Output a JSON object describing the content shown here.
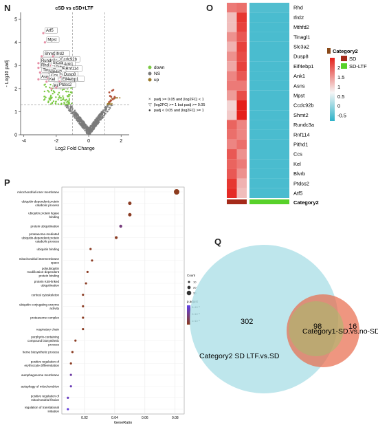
{
  "panels": {
    "n": "N",
    "o": "O",
    "p": "P",
    "q": "Q"
  },
  "chart_data": [
    {
      "panel": "N",
      "type": "scatter",
      "title": "cSD vs cSD+LTF",
      "xlabel": "Log2 Fold Change",
      "ylabel": "- Log10 padj",
      "xlim": [
        -4.2,
        2.5
      ],
      "ylim": [
        0,
        5.3
      ],
      "xticks": [
        "-4",
        "-2",
        "0",
        "2"
      ],
      "yticks": [
        "0",
        "1",
        "2",
        "3",
        "4",
        "5"
      ],
      "threshold_lines": {
        "x": [
          -1,
          1
        ],
        "y": 1.3
      },
      "legend_groups": [
        {
          "name": "down",
          "color": "#7bc943"
        },
        {
          "name": "NS",
          "color": "#7a7a7a"
        },
        {
          "name": "up",
          "color": "#9b7a2a"
        }
      ],
      "legend_notes": [
        "padj >= 0.05 and |log2FC| < 1",
        "|log2FC| >= 1 but padj >= 0.05",
        "padj < 0.05 and |log2FC| >= 1"
      ],
      "labeled_genes": [
        {
          "gene": "Atf5",
          "x": -2.8,
          "y": 4.4
        },
        {
          "gene": "Mpst",
          "x": -2.7,
          "y": 4.0
        },
        {
          "gene": "Shmt2",
          "x": -2.9,
          "y": 3.4
        },
        {
          "gene": "Ifrd2",
          "x": -2.2,
          "y": 3.4
        },
        {
          "gene": "Ccdc92b",
          "x": -1.9,
          "y": 3.15
        },
        {
          "gene": "Rundc3a",
          "x": -3.1,
          "y": 3.1
        },
        {
          "gene": "Slc3a2",
          "x": -2.4,
          "y": 3.0
        },
        {
          "gene": "Ank1",
          "x": -1.7,
          "y": 2.95
        },
        {
          "gene": "Rhd",
          "x": -3.1,
          "y": 2.9
        },
        {
          "gene": "Pithd1",
          "x": -2.2,
          "y": 2.8
        },
        {
          "gene": "Rnf114",
          "x": -1.6,
          "y": 2.75
        },
        {
          "gene": "Tinagl1",
          "x": -3.0,
          "y": 2.7
        },
        {
          "gene": "Mthfd2",
          "x": -2.6,
          "y": 2.6
        },
        {
          "gene": "Asns",
          "x": -3.1,
          "y": 2.4
        },
        {
          "gene": "Ccs",
          "x": -2.5,
          "y": 2.45
        },
        {
          "gene": "Dusp8",
          "x": -1.7,
          "y": 2.5
        },
        {
          "gene": "Kel",
          "x": -2.6,
          "y": 2.3
        },
        {
          "gene": "Eif4ebp1",
          "x": -1.8,
          "y": 2.3
        },
        {
          "gene": "Blvrb",
          "x": -2.3,
          "y": 2.0
        },
        {
          "gene": "Ptdss2",
          "x": -2.0,
          "y": 2.05
        }
      ]
    },
    {
      "panel": "O",
      "type": "heatmap",
      "rows": [
        "Rhd",
        "Ifrd2",
        "Mthfd2",
        "Tinagl1",
        "Slc3a2",
        "Dusp8",
        "Eif4ebp1",
        "Ank1",
        "Asns",
        "Mpst",
        "Ccdc92b",
        "Shmt2",
        "Rundc3a",
        "Rnf114",
        "Pithd1",
        "Ccs",
        "Kel",
        "Blvrb",
        "Ptdss2",
        "Atf5"
      ],
      "columns": [
        "SD",
        "SD",
        "SD-LTF",
        "SD-LTF",
        "SD-LTF",
        "SD-LTF"
      ],
      "values": [
        [
          1.7,
          1.8,
          -0.55,
          -0.55,
          -0.55,
          -0.55
        ],
        [
          1.1,
          2.3,
          -0.6,
          -0.6,
          -0.6,
          -0.6
        ],
        [
          1.1,
          2.2,
          -0.6,
          -0.6,
          -0.6,
          -0.6
        ],
        [
          1.5,
          2.0,
          -0.6,
          -0.6,
          -0.6,
          -0.6
        ],
        [
          1.2,
          2.2,
          -0.6,
          -0.6,
          -0.6,
          -0.6
        ],
        [
          1.5,
          2.1,
          -0.6,
          -0.6,
          -0.6,
          -0.6
        ],
        [
          1.3,
          2.2,
          -0.6,
          -0.6,
          -0.6,
          -0.6
        ],
        [
          1.6,
          2.0,
          -0.6,
          -0.6,
          -0.6,
          -0.6
        ],
        [
          1.7,
          1.7,
          -0.6,
          -0.6,
          -0.6,
          -0.6
        ],
        [
          1.4,
          2.1,
          -0.6,
          -0.6,
          -0.6,
          -0.6
        ],
        [
          0.9,
          2.5,
          -0.6,
          -0.6,
          -0.6,
          -0.6
        ],
        [
          1.0,
          2.5,
          -0.6,
          -0.6,
          -0.6,
          -0.6
        ],
        [
          1.9,
          1.6,
          -0.6,
          -0.6,
          -0.6,
          -0.6
        ],
        [
          1.8,
          1.6,
          -0.6,
          -0.6,
          -0.6,
          -0.6
        ],
        [
          1.6,
          1.8,
          -0.6,
          -0.6,
          -0.6,
          -0.6
        ],
        [
          2.0,
          1.5,
          -0.6,
          -0.6,
          -0.6,
          -0.6
        ],
        [
          1.9,
          1.7,
          -0.6,
          -0.6,
          -0.6,
          -0.6
        ],
        [
          2.0,
          1.5,
          -0.6,
          -0.6,
          -0.6,
          -0.6
        ],
        [
          2.3,
          1.2,
          -0.6,
          -0.6,
          -0.6,
          -0.6
        ],
        [
          2.4,
          1.1,
          -0.6,
          -0.6,
          -0.6,
          -0.6
        ]
      ],
      "annotation_label": "Category2",
      "legend_title": "Category2",
      "legend_items": [
        {
          "name": "SD",
          "color": "#a52a1a"
        },
        {
          "name": "SD-LTF",
          "color": "#58d12a"
        }
      ],
      "colorbar_ticks": [
        "2",
        "1.5",
        "1",
        "0.5",
        "0",
        "-0.5"
      ],
      "colorbar_range": [
        -0.8,
        2.5
      ]
    },
    {
      "panel": "P",
      "type": "scatter",
      "xlabel": "GeneRatio",
      "xlim": [
        0.005,
        0.086
      ],
      "xticks": [
        "0.02",
        "0.04",
        "0.06",
        "0.08"
      ],
      "size_legend_title": "Count",
      "size_legend_values": [
        "10",
        "20",
        "30"
      ],
      "color_legend_title": "p.adjust",
      "color_legend_values": [
        "5×10⁻³",
        "2×10⁻³",
        "1×10⁻³"
      ],
      "terms": [
        {
          "term": "mitochondrial inner membrane",
          "gene_ratio": 0.081,
          "p_adjust": 0.0008
        },
        {
          "term": "ubiquitin-dependent protein catabolic process",
          "gene_ratio": 0.05,
          "p_adjust": 0.0009
        },
        {
          "term": "ubiquitin protein ligase binding",
          "gene_ratio": 0.05,
          "p_adjust": 0.0009
        },
        {
          "term": "protein ubiquitination",
          "gene_ratio": 0.044,
          "p_adjust": 0.0028
        },
        {
          "term": "proteasome-mediated ubiquitin-dependent protein catabolic process",
          "gene_ratio": 0.041,
          "p_adjust": 0.0009
        },
        {
          "term": "ubiquitin binding",
          "gene_ratio": 0.024,
          "p_adjust": 0.0009
        },
        {
          "term": "mitochondrial intermembrane space",
          "gene_ratio": 0.025,
          "p_adjust": 0.0009
        },
        {
          "term": "polyubiquitin modification-dependent protein binding",
          "gene_ratio": 0.022,
          "p_adjust": 0.0009
        },
        {
          "term": "protein K48-linked ubiquitination",
          "gene_ratio": 0.021,
          "p_adjust": 0.0009
        },
        {
          "term": "cortical cytoskeleton",
          "gene_ratio": 0.019,
          "p_adjust": 0.0009
        },
        {
          "term": "ubiquitin conjugating enzyme activity",
          "gene_ratio": 0.019,
          "p_adjust": 0.0009
        },
        {
          "term": "proteasome complex",
          "gene_ratio": 0.019,
          "p_adjust": 0.0009
        },
        {
          "term": "respiratory chain",
          "gene_ratio": 0.019,
          "p_adjust": 0.0009
        },
        {
          "term": "porphyrin-containing compound biosynthetic process",
          "gene_ratio": 0.014,
          "p_adjust": 0.0009
        },
        {
          "term": "heme biosynthetic process",
          "gene_ratio": 0.012,
          "p_adjust": 0.0009
        },
        {
          "term": "positive regulation of erythrocyte differentiation",
          "gene_ratio": 0.011,
          "p_adjust": 0.0009
        },
        {
          "term": "autophagosome membrane",
          "gene_ratio": 0.011,
          "p_adjust": 0.0036
        },
        {
          "term": "autophagy of mitochondrion",
          "gene_ratio": 0.011,
          "p_adjust": 0.004
        },
        {
          "term": "positive regulation of mitochondrial fission",
          "gene_ratio": 0.009,
          "p_adjust": 0.0042
        },
        {
          "term": "regulation of translational initiation",
          "gene_ratio": 0.009,
          "p_adjust": 0.0048
        }
      ]
    },
    {
      "panel": "Q",
      "type": "venn",
      "sets": [
        {
          "name": "Category2",
          "label_text": "Category2  SD  LTF.vs.SD",
          "only": 302,
          "color": "#a8dde6"
        },
        {
          "name": "Category1",
          "label_text": "Category1-SD.vs.no-SD",
          "only": 16,
          "color": "#e8694a"
        }
      ],
      "intersection": 98
    }
  ]
}
